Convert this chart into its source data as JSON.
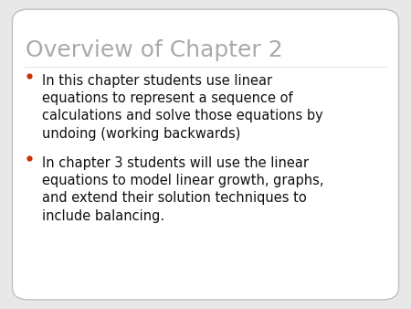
{
  "background_color": "#e8e8e8",
  "slide_bg": "#ffffff",
  "border_color": "#c0c0c0",
  "title": "Overview of Chapter 2",
  "title_color": "#aaaaaa",
  "title_fontsize": 18,
  "bullet_color": "#cc3300",
  "body_color": "#111111",
  "body_fontsize": 10.5,
  "bullet1": "In this chapter students use linear\nequations to represent a sequence of\ncalculations and solve those equations by\nundoing (working backwards)",
  "bullet2": "In chapter 3 students will use the linear\nequations to model linear growth, graphs,\nand extend their solution techniques to\ninclude balancing."
}
